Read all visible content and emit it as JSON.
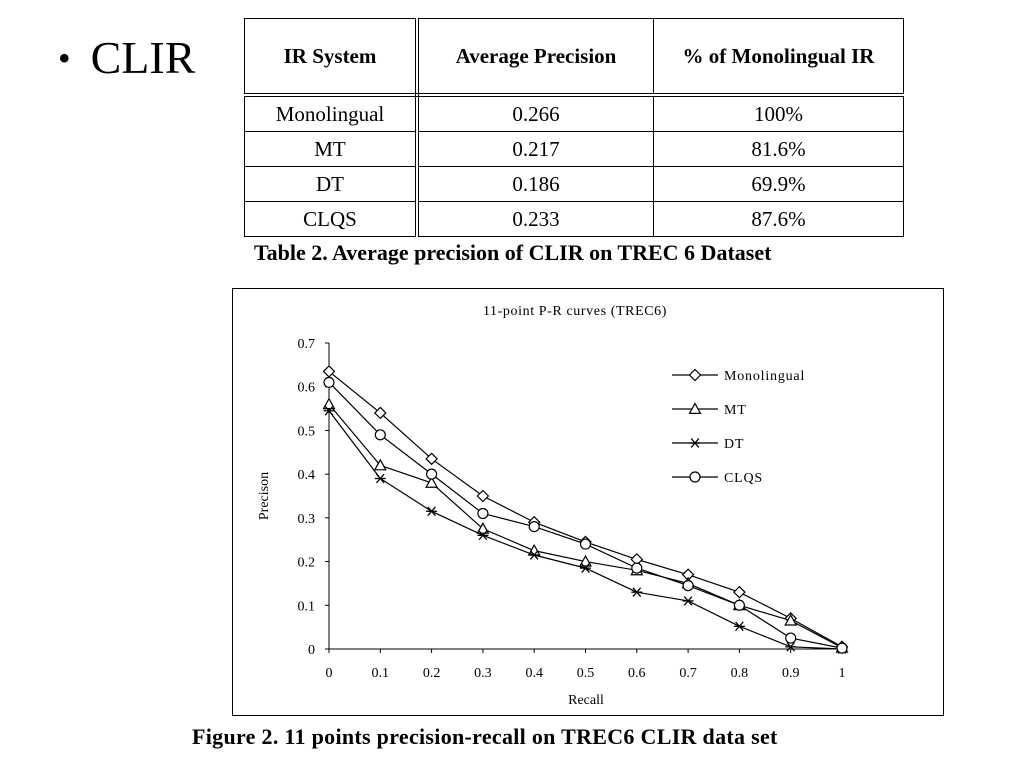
{
  "slide": {
    "bullet": "CLIR"
  },
  "table": {
    "headers": [
      "IR System",
      "Average Precision",
      "% of Monolingual IR"
    ],
    "rows": [
      [
        "Monolingual",
        "0.266",
        "100%"
      ],
      [
        "MT",
        "0.217",
        "81.6%"
      ],
      [
        "DT",
        "0.186",
        "69.9%"
      ],
      [
        "CLQS",
        "0.233",
        "87.6%"
      ]
    ],
    "caption": "Table 2. Average precision of CLIR on TREC 6 Dataset"
  },
  "figure": {
    "caption": "Figure 2. 11 points precision-recall on TREC6 CLIR data set"
  },
  "chart_data": {
    "type": "line",
    "title": "11-point P-R curves (TREC6)",
    "xlabel": "Recall",
    "ylabel": "Precison",
    "x": [
      0,
      0.1,
      0.2,
      0.3,
      0.4,
      0.5,
      0.6,
      0.7,
      0.8,
      0.9,
      1
    ],
    "x_tick_labels": [
      "0",
      "0.1",
      "0.2",
      "0.3",
      "0.4",
      "0.5",
      "0.6",
      "0.7",
      "0.8",
      "0.9",
      "1"
    ],
    "xlim": [
      0,
      1
    ],
    "ylim": [
      0,
      0.7
    ],
    "y_ticks": [
      0,
      0.1,
      0.2,
      0.3,
      0.4,
      0.5,
      0.6,
      0.7
    ],
    "y_tick_labels": [
      "0",
      "0.1",
      "0.2",
      "0.3",
      "0.4",
      "0.5",
      "0.6",
      "0.7"
    ],
    "grid": false,
    "legend_position": "top-right",
    "series": [
      {
        "name": "Monolingual",
        "marker": "diamond",
        "values": [
          0.635,
          0.54,
          0.435,
          0.35,
          0.29,
          0.245,
          0.205,
          0.17,
          0.13,
          0.07,
          0.005
        ]
      },
      {
        "name": "MT",
        "marker": "triangle",
        "values": [
          0.56,
          0.42,
          0.38,
          0.275,
          0.225,
          0.2,
          0.18,
          0.15,
          0.1,
          0.065,
          0.003
        ]
      },
      {
        "name": "DT",
        "marker": "asterisk",
        "values": [
          0.545,
          0.39,
          0.315,
          0.26,
          0.215,
          0.185,
          0.13,
          0.11,
          0.052,
          0.005,
          0.0
        ]
      },
      {
        "name": "CLQS",
        "marker": "circle",
        "values": [
          0.61,
          0.49,
          0.4,
          0.31,
          0.28,
          0.24,
          0.185,
          0.145,
          0.1,
          0.025,
          0.002
        ]
      }
    ]
  }
}
